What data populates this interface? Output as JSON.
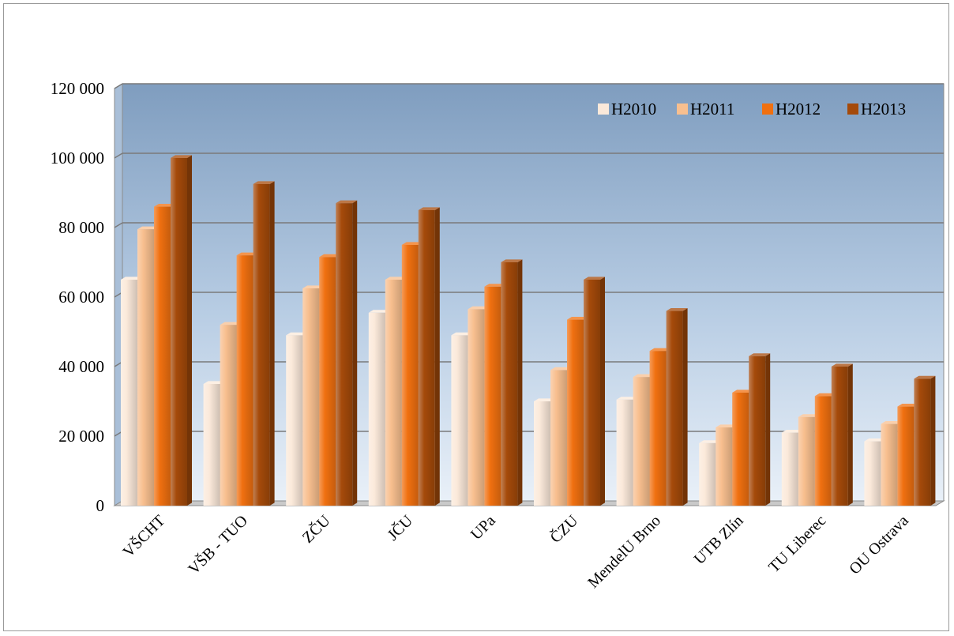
{
  "chart_data": {
    "type": "bar",
    "categories": [
      "VŠCHT",
      "VŠB - TUO",
      "ZČU",
      "JČU",
      "UPa",
      "ČZU",
      "MendelU Brno",
      "UTB Zlín",
      "TU Liberec",
      "OU Ostrava"
    ],
    "series": [
      {
        "name": "H2010",
        "color": "#fbe9da",
        "values": [
          65000,
          35000,
          49000,
          55500,
          49000,
          30000,
          30500,
          18000,
          21000,
          18500
        ]
      },
      {
        "name": "H2011",
        "color": "#f8bf8f",
        "values": [
          79500,
          52000,
          62500,
          65000,
          56500,
          39000,
          37000,
          22500,
          25500,
          23500
        ]
      },
      {
        "name": "H2012",
        "color": "#f07010",
        "values": [
          86000,
          72000,
          71500,
          75000,
          63000,
          53500,
          44500,
          32500,
          31500,
          28500
        ]
      },
      {
        "name": "H2013",
        "color": "#a54a0a",
        "values": [
          100000,
          92500,
          87000,
          85000,
          70000,
          65000,
          56000,
          43000,
          40000,
          36500
        ]
      }
    ],
    "y_ticks": [
      "0",
      "20 000",
      "40 000",
      "60 000",
      "80 000",
      "100 000",
      "120 000"
    ],
    "ylim": [
      0,
      120000
    ],
    "grid": true,
    "legend_position": "top-right"
  }
}
